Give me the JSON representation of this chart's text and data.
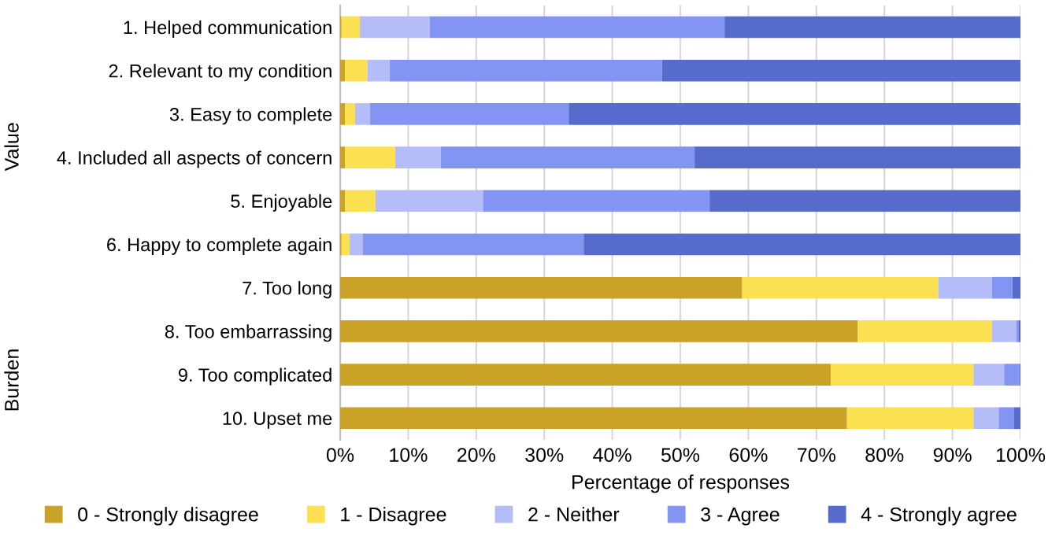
{
  "chart_data": {
    "type": "bar",
    "orientation": "horizontal",
    "stacked": true,
    "categories": [
      "1. Helped communication",
      "2. Relevant to my condition",
      "3. Easy to complete",
      "4. Included all aspects of concern",
      "5. Enjoyable",
      "6. Happy to complete again",
      "7. Too long",
      "8. Too embarrassing",
      "9. Too complicated",
      "10. Upset me"
    ],
    "series": [
      {
        "name": "0 - Strongly disagree",
        "color": "#c9a227",
        "values": [
          0.2,
          0.7,
          0.7,
          0.7,
          0.7,
          0.2,
          59.1,
          76.1,
          72.1,
          74.5
        ]
      },
      {
        "name": "1 - Disagree",
        "color": "#fbe051",
        "values": [
          2.7,
          3.3,
          1.5,
          7.4,
          4.5,
          1.2,
          28.8,
          19.7,
          21.0,
          18.6
        ]
      },
      {
        "name": "2 - Neither",
        "color": "#b4bdf8",
        "values": [
          10.3,
          3.3,
          2.2,
          6.7,
          15.8,
          1.9,
          7.9,
          3.6,
          4.5,
          3.7
        ]
      },
      {
        "name": "3 - Agree",
        "color": "#8394f2",
        "values": [
          43.3,
          40.0,
          29.2,
          37.3,
          33.3,
          32.5,
          3.0,
          0.3,
          2.3,
          2.2
        ]
      },
      {
        "name": "4 - Strongly agree",
        "color": "#566bcb",
        "values": [
          43.5,
          52.7,
          66.4,
          47.9,
          45.7,
          64.2,
          1.2,
          0.3,
          0.1,
          1.0
        ]
      }
    ],
    "xlim": [
      0,
      100
    ],
    "xticks": [
      {
        "value": 0,
        "label": "0%"
      },
      {
        "value": 10,
        "label": "10%"
      },
      {
        "value": 20,
        "label": "20%"
      },
      {
        "value": 30,
        "label": "30%"
      },
      {
        "value": 40,
        "label": "40%"
      },
      {
        "value": 50,
        "label": "50%"
      },
      {
        "value": 60,
        "label": "60%"
      },
      {
        "value": 70,
        "label": "70%"
      },
      {
        "value": 80,
        "label": "80%"
      },
      {
        "value": 90,
        "label": "90%"
      },
      {
        "value": 100,
        "label": "100%"
      }
    ],
    "xlabel": "Percentage of responses",
    "annotations": [
      "Value",
      "Burden"
    ],
    "grid": "x",
    "legend": "bottom"
  }
}
